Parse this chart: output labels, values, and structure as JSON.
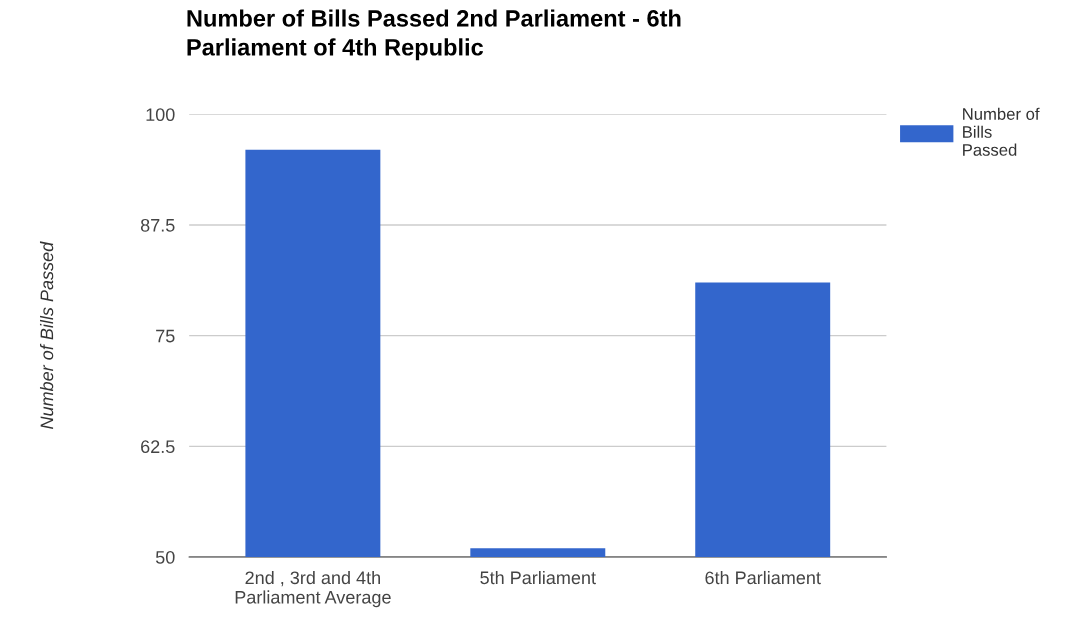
{
  "chart_data": {
    "type": "bar",
    "title": "Number of Bills Passed 2nd Parliament - 6th\nParliament of 4th Republic",
    "ylabel": "Number of Bills Passed",
    "categories": [
      "2nd , 3rd and 4th\nParliament Average",
      "5th Parliament",
      "6th Parliament"
    ],
    "series": [
      {
        "name": "Number of\nBills\nPassed",
        "color": "#3366cc",
        "values": [
          96,
          51,
          81
        ]
      }
    ],
    "ylim": [
      50,
      100
    ],
    "yticks": [
      50,
      62.5,
      75,
      87.5,
      100
    ],
    "grid": "y",
    "legend": "top right"
  }
}
